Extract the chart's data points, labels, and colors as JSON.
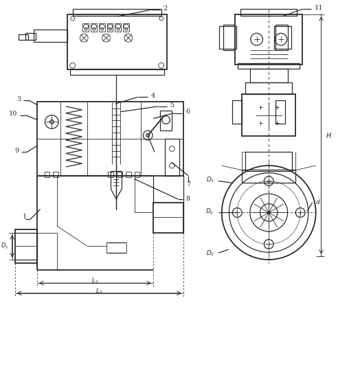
{
  "bg_color": "#ffffff",
  "line_color": "#2a2a2a",
  "lw_thin": 0.6,
  "lw_med": 0.9,
  "lw_thick": 1.3
}
